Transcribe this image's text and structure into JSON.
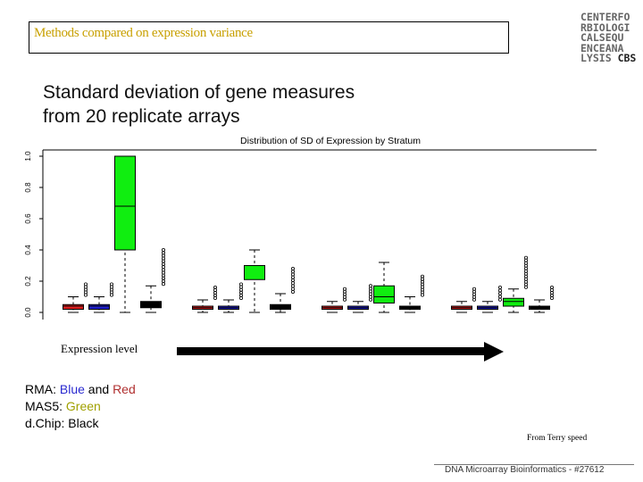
{
  "slide": {
    "header_title": "Methods compared on expression variance",
    "logo_lines": [
      "CENTERFO",
      "RBIOLOGI",
      "CALSEQU",
      "ENCEANA",
      "LYSIS"
    ],
    "logo_suffix": "CBS",
    "subtitle_line1": "Standard deviation of gene measures",
    "subtitle_line2": "from 20 replicate arrays",
    "xlabel": "Expression level",
    "legend": {
      "rma_prefix": "RMA: ",
      "rma_blue": "Blue",
      "rma_and": " and ",
      "rma_red": "Red",
      "mas5_prefix": "MAS5: ",
      "mas5_green": "Green",
      "dchip_prefix": "d.Chip: ",
      "dchip_black": "Black",
      "colors": {
        "blue": "#2a2ad0",
        "red": "#b03030",
        "green": "#a0a000",
        "black": "#000000"
      }
    },
    "credit": "From Terry speed",
    "footer": "DNA Microarray Bioinformatics - #27612"
  },
  "chart_data": {
    "type": "box",
    "title": "Distribution of SD of Expression by Stratum",
    "ylim": [
      0,
      1.0
    ],
    "yticks": [
      "0.0",
      "0.2",
      "0.4",
      "0.6",
      "0.8",
      "1.0"
    ],
    "grid": false,
    "colors": {
      "red": "#e02020",
      "blue": "#2020d0",
      "green": "#10ee10",
      "black": "#000000"
    },
    "strata": [
      {
        "boxes": [
          {
            "method": "red",
            "q1": 0.02,
            "median": 0.04,
            "q3": 0.05,
            "whisker_low": 0.0,
            "whisker_high": 0.1,
            "outlier_max": 0.18
          },
          {
            "method": "blue",
            "q1": 0.02,
            "median": 0.04,
            "q3": 0.05,
            "whisker_low": 0.0,
            "whisker_high": 0.1,
            "outlier_max": 0.18
          },
          {
            "method": "green",
            "q1": 0.4,
            "median": 0.68,
            "q3": 1.0,
            "whisker_low": 0.0,
            "whisker_high": 1.0,
            "outlier_max": 1.0
          },
          {
            "method": "black",
            "q1": 0.03,
            "median": 0.06,
            "q3": 0.07,
            "whisker_low": 0.0,
            "whisker_high": 0.17,
            "outlier_max": 0.4
          }
        ]
      },
      {
        "boxes": [
          {
            "method": "red",
            "q1": 0.02,
            "median": 0.03,
            "q3": 0.04,
            "whisker_low": 0.0,
            "whisker_high": 0.08,
            "outlier_max": 0.16
          },
          {
            "method": "blue",
            "q1": 0.02,
            "median": 0.03,
            "q3": 0.04,
            "whisker_low": 0.0,
            "whisker_high": 0.08,
            "outlier_max": 0.18
          },
          {
            "method": "green",
            "q1": 0.21,
            "median": 0.3,
            "q3": 0.3,
            "whisker_low": 0.0,
            "whisker_high": 0.4,
            "outlier_max": 0.4
          },
          {
            "method": "black",
            "q1": 0.02,
            "median": 0.04,
            "q3": 0.05,
            "whisker_low": 0.0,
            "whisker_high": 0.12,
            "outlier_max": 0.28
          }
        ]
      },
      {
        "boxes": [
          {
            "method": "red",
            "q1": 0.02,
            "median": 0.03,
            "q3": 0.04,
            "whisker_low": 0.0,
            "whisker_high": 0.07,
            "outlier_max": 0.15
          },
          {
            "method": "blue",
            "q1": 0.02,
            "median": 0.03,
            "q3": 0.04,
            "whisker_low": 0.0,
            "whisker_high": 0.07,
            "outlier_max": 0.17
          },
          {
            "method": "green",
            "q1": 0.06,
            "median": 0.1,
            "q3": 0.17,
            "whisker_low": 0.0,
            "whisker_high": 0.32,
            "outlier_max": 0.32
          },
          {
            "method": "black",
            "q1": 0.02,
            "median": 0.03,
            "q3": 0.04,
            "whisker_low": 0.0,
            "whisker_high": 0.1,
            "outlier_max": 0.23
          }
        ]
      },
      {
        "boxes": [
          {
            "method": "red",
            "q1": 0.02,
            "median": 0.03,
            "q3": 0.04,
            "whisker_low": 0.0,
            "whisker_high": 0.07,
            "outlier_max": 0.15
          },
          {
            "method": "blue",
            "q1": 0.02,
            "median": 0.03,
            "q3": 0.04,
            "whisker_low": 0.0,
            "whisker_high": 0.07,
            "outlier_max": 0.16
          },
          {
            "method": "green",
            "q1": 0.04,
            "median": 0.07,
            "q3": 0.09,
            "whisker_low": 0.0,
            "whisker_high": 0.15,
            "outlier_max": 0.35
          },
          {
            "method": "black",
            "q1": 0.02,
            "median": 0.03,
            "q3": 0.04,
            "whisker_low": 0.0,
            "whisker_high": 0.08,
            "outlier_max": 0.16
          }
        ]
      }
    ]
  }
}
